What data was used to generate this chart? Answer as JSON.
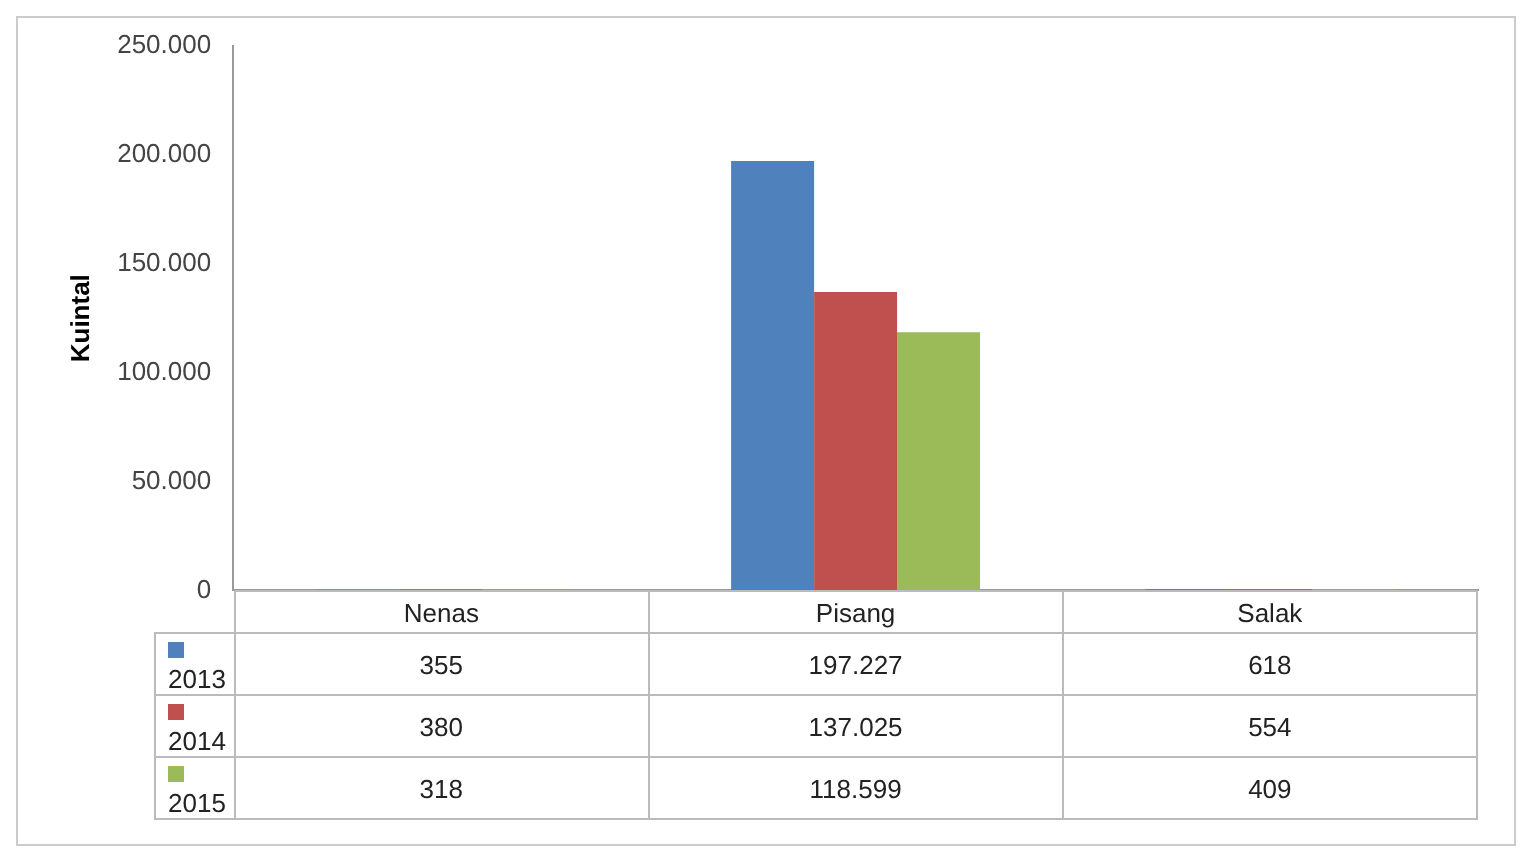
{
  "chart_data": {
    "type": "bar",
    "ylabel": "Kuintal",
    "categories": [
      "Nenas",
      "Pisang",
      "Salak"
    ],
    "series": [
      {
        "name": "2013",
        "color": "#4f81bd",
        "values": [
          355,
          197227,
          618
        ],
        "value_labels": [
          "355",
          "197.227",
          "618"
        ]
      },
      {
        "name": "2014",
        "color": "#c0504d",
        "values": [
          380,
          137025,
          554
        ],
        "value_labels": [
          "380",
          "137.025",
          "554"
        ]
      },
      {
        "name": "2015",
        "color": "#9bbb59",
        "values": [
          318,
          118599,
          409
        ],
        "value_labels": [
          "318",
          "118.599",
          "409"
        ]
      }
    ],
    "ylim": [
      0,
      250000
    ],
    "yticks": [
      {
        "value": 0,
        "label": "0"
      },
      {
        "value": 50000,
        "label": "50.000"
      },
      {
        "value": 100000,
        "label": "100.000"
      },
      {
        "value": 150000,
        "label": "150.000"
      },
      {
        "value": 200000,
        "label": "200.000"
      },
      {
        "value": 250000,
        "label": "250.000"
      }
    ],
    "legend": "bottom"
  }
}
